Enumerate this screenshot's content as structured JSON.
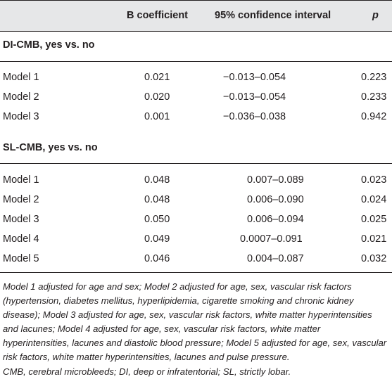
{
  "table": {
    "headers": {
      "label": "",
      "b": "B coefficient",
      "ci": "95% confidence interval",
      "p": "p"
    },
    "sections": [
      {
        "title": "DI-CMB, yes vs. no",
        "rows": [
          {
            "model": "Model 1",
            "b": "0.021",
            "ci": "−0.013–0.054",
            "p": "0.223"
          },
          {
            "model": "Model 2",
            "b": "0.020",
            "ci": "−0.013–0.054",
            "p": "0.233"
          },
          {
            "model": "Model 3",
            "b": "0.001",
            "ci": "−0.036–0.038",
            "p": "0.942"
          }
        ]
      },
      {
        "title": "SL-CMB, yes vs. no",
        "rows": [
          {
            "model": "Model 1",
            "b": "0.048",
            "ci": "0.007–0.089",
            "p": "0.023"
          },
          {
            "model": "Model 2",
            "b": "0.048",
            "ci": "0.006–0.090",
            "p": "0.024"
          },
          {
            "model": "Model 3",
            "b": "0.050",
            "ci": "0.006–0.094",
            "p": "0.025"
          },
          {
            "model": "Model 4",
            "b": "0.049",
            "ci": "0.0007–0.091",
            "p": "0.021"
          },
          {
            "model": "Model 5",
            "b": "0.046",
            "ci": "0.004–0.087",
            "p": "0.032"
          }
        ]
      }
    ]
  },
  "footnote": {
    "models": "Model 1 adjusted for age and sex; Model 2 adjusted for age, sex, vascular risk factors (hypertension, diabetes mellitus, hyperlipidemia, cigarette smoking and chronic kidney disease); Model 3 adjusted for age, sex, vascular risk factors, white matter hyperintensities and lacunes; Model 4 adjusted for age, sex, vascular risk factors, white matter hyperintensities, lacunes and diastolic blood pressure; Model 5 adjusted for age, sex, vascular risk factors, white matter hyperintensities, lacunes and pulse pressure.",
    "abbreviations": "CMB, cerebral microbleeds; DI, deep or infratentorial; SL, strictly lobar."
  }
}
